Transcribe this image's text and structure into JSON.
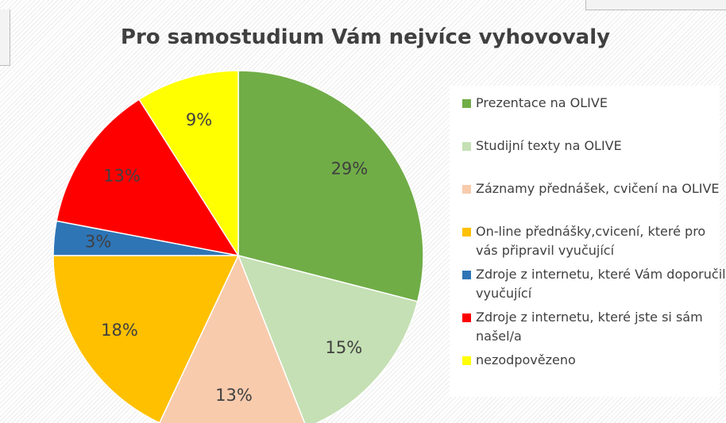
{
  "chart_data": {
    "type": "pie",
    "title": "Pro samostudium Vám nejvíce vyhovovaly",
    "categories": [
      "Prezentace na OLIVE",
      "Studijní texty na OLIVE",
      "Záznamy přednášek, cvičení na OLIVE",
      "On-line přednášky,cvicení, které pro vás připravil vyučující",
      "Zdroje z internetu, které Vám doporučili vyučující",
      "Zdroje z internetu, které jste si sám našel/a",
      "nezodpovězeno"
    ],
    "values": [
      29,
      15,
      13,
      18,
      3,
      13,
      9
    ],
    "value_labels": [
      "29%",
      "15%",
      "13%",
      "18%",
      "3%",
      "13%",
      "9%"
    ],
    "colors": [
      "#70ad47",
      "#c5e0b4",
      "#f8cbad",
      "#ffc000",
      "#2e75b6",
      "#ff0000",
      "#ffff00"
    ],
    "legend": "right"
  }
}
